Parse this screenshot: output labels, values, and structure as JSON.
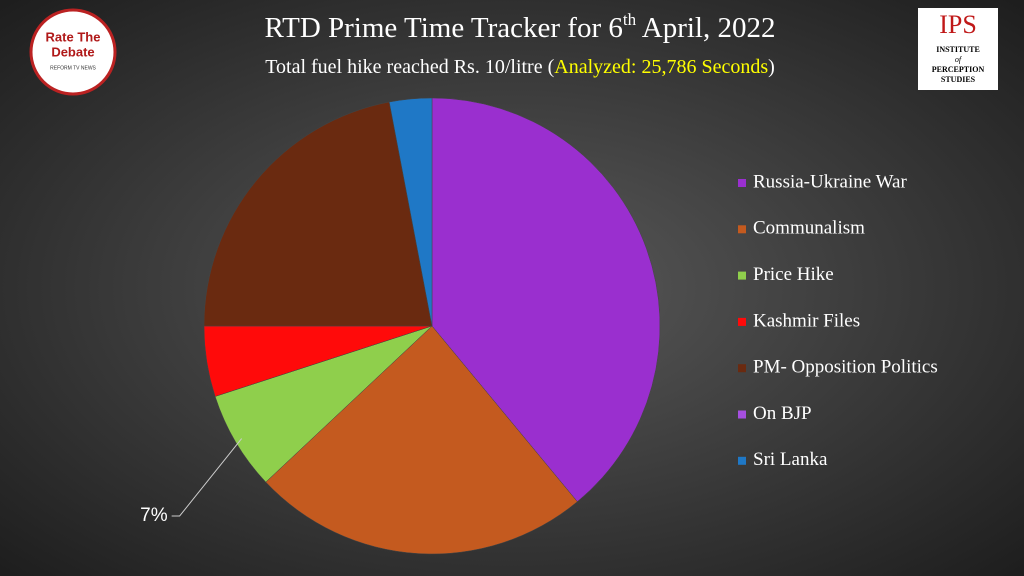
{
  "chart_data": {
    "type": "pie",
    "title": [
      "RTD Prime Time Tracker for 6",
      "th",
      " April, 2022"
    ],
    "subtitle": [
      "Total fuel hike reached Rs. 10/litre (",
      "Analyzed: 25,786 Seconds",
      ")"
    ],
    "categories": [
      "Russia-Ukraine War",
      "Communalism",
      "Price Hike",
      "Kashmir Files",
      "PM- Opposition Politics",
      "On BJP",
      "Sri Lanka"
    ],
    "values": [
      39,
      24,
      7,
      5,
      22,
      0,
      3
    ],
    "value_labels": [
      null,
      null,
      "7%",
      null,
      null,
      null,
      null
    ],
    "colors": [
      "#9a2fcf",
      "#c45a1f",
      "#8fcf4c",
      "#ff0a0a",
      "#6a2a10",
      "#a64fe0",
      "#1f78c6"
    ],
    "legend": "right"
  },
  "logos": {
    "left": [
      "Rate The",
      "Debate",
      "REFORM TV NEWS"
    ],
    "right": [
      "IPS",
      "INSTITUTE",
      "of",
      "PERCEPTION",
      "STUDIES"
    ]
  }
}
